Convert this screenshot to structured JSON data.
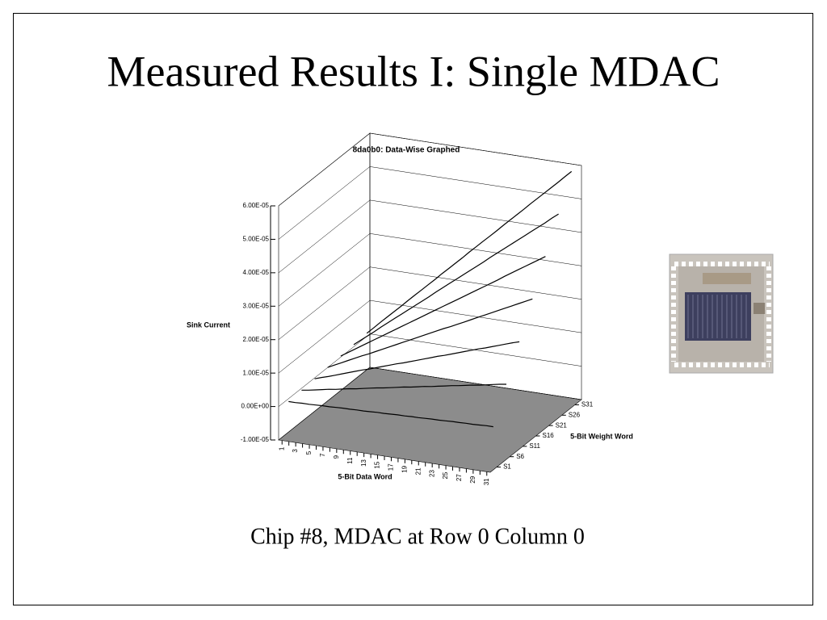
{
  "slide_title": "Measured Results I: Single MDAC",
  "caption": "Chip #8, MDAC at Row 0 Column 0",
  "chart_data": {
    "type": "line3d",
    "title": "8da0b0: Data-Wise Graphed",
    "y_label": "Sink Current",
    "x_label": "5-Bit Data Word",
    "z_label": "5-Bit Weight Word",
    "categories": [
      "1",
      null,
      "3",
      null,
      "5",
      null,
      "7",
      null,
      "9",
      null,
      "11",
      null,
      "13",
      null,
      "15",
      null,
      "17",
      null,
      "19",
      null,
      "21",
      null,
      "23",
      null,
      "25",
      null,
      "27",
      null,
      "29",
      null,
      "31"
    ],
    "ylim": [
      -1e-05,
      6e-05
    ],
    "yticks": [
      {
        "value": -1e-05,
        "label": "-1.00E-05"
      },
      {
        "value": 0,
        "label": "0.00E+00"
      },
      {
        "value": 1e-05,
        "label": "1.00E-05"
      },
      {
        "value": 2e-05,
        "label": "2.00E-05"
      },
      {
        "value": 3e-05,
        "label": "3.00E-05"
      },
      {
        "value": 4e-05,
        "label": "4.00E-05"
      },
      {
        "value": 5e-05,
        "label": "5.00E-05"
      },
      {
        "value": 6e-05,
        "label": "6.00E-05"
      }
    ],
    "grid": true,
    "floor_color": "#8c8c8c",
    "series": [
      {
        "name": "S1",
        "color": "#000000",
        "values": [
          1e-07,
          1e-07,
          2e-07,
          2e-07,
          3e-07,
          4e-07,
          4e-07,
          5e-07,
          6e-07,
          6e-07,
          7e-07,
          7e-07,
          8e-07,
          9e-07,
          9e-07,
          1e-06,
          1.1e-06,
          1.1e-06,
          1.2e-06,
          1.2e-06,
          1.3e-06,
          1.4e-06,
          1.4e-06,
          1.5e-06,
          1.6e-06,
          1.6e-06,
          1.7e-06,
          1.7e-06,
          1.8e-06,
          1.9e-06,
          1.9e-06
        ]
      },
      {
        "name": "S6",
        "color": "#000000",
        "values": [
          4e-07,
          7e-07,
          1.1e-06,
          1.5e-06,
          1.9e-06,
          2.2e-06,
          2.6e-06,
          3e-06,
          3.3e-06,
          3.7e-06,
          4.1e-06,
          4.5e-06,
          4.8e-06,
          5.2e-06,
          5.6e-06,
          6e-06,
          6.3e-06,
          6.7e-06,
          7.1e-06,
          7.4e-06,
          7.8e-06,
          8.2e-06,
          8.6e-06,
          8.9e-06,
          9.3e-06,
          9.7e-06,
          1e-05,
          1.04e-05,
          1.08e-05,
          1.12e-05,
          1.15e-05
        ]
      },
      {
        "name": "S11",
        "color": "#000000",
        "values": [
          7e-07,
          1.4e-06,
          2e-06,
          2.7e-06,
          3.4e-06,
          4.1e-06,
          4.8e-06,
          5.5e-06,
          6.1e-06,
          6.8e-06,
          7.5e-06,
          8.2e-06,
          8.9e-06,
          9.5e-06,
          1.02e-05,
          1.09e-05,
          1.16e-05,
          1.23e-05,
          1.3e-05,
          1.36e-05,
          1.43e-05,
          1.5e-05,
          1.57e-05,
          1.64e-05,
          1.71e-05,
          1.77e-05,
          1.84e-05,
          1.91e-05,
          1.98e-05,
          2.05e-05,
          2.11e-05
        ]
      },
      {
        "name": "S16",
        "color": "#000000",
        "values": [
          1e-06,
          2e-06,
          3e-06,
          4e-06,
          5e-06,
          6e-06,
          6.9e-06,
          7.9e-06,
          8.9e-06,
          9.9e-06,
          1.09e-05,
          1.19e-05,
          1.29e-05,
          1.39e-05,
          1.49e-05,
          1.59e-05,
          1.69e-05,
          1.79e-05,
          1.88e-05,
          1.98e-05,
          2.08e-05,
          2.18e-05,
          2.28e-05,
          2.38e-05,
          2.48e-05,
          2.58e-05,
          2.68e-05,
          2.78e-05,
          2.88e-05,
          2.98e-05,
          3.08e-05
        ]
      },
      {
        "name": "S21",
        "color": "#000000",
        "values": [
          1.3e-06,
          2.6e-06,
          3.9e-06,
          5.2e-06,
          6.5e-06,
          7.8e-06,
          9.1e-06,
          1.04e-05,
          1.17e-05,
          1.3e-05,
          1.43e-05,
          1.56e-05,
          1.69e-05,
          1.82e-05,
          1.95e-05,
          2.08e-05,
          2.21e-05,
          2.34e-05,
          2.47e-05,
          2.6e-05,
          2.73e-05,
          2.86e-05,
          2.99e-05,
          3.12e-05,
          3.26e-05,
          3.39e-05,
          3.52e-05,
          3.65e-05,
          3.78e-05,
          3.91e-05,
          4.04e-05
        ]
      },
      {
        "name": "S26",
        "color": "#000000",
        "values": [
          1.6e-06,
          3.2e-06,
          4.8e-06,
          6.4e-06,
          8.1e-06,
          9.7e-06,
          1.13e-05,
          1.29e-05,
          1.45e-05,
          1.61e-05,
          1.77e-05,
          1.93e-05,
          2.1e-05,
          2.26e-05,
          2.42e-05,
          2.58e-05,
          2.74e-05,
          2.9e-05,
          3.06e-05,
          3.22e-05,
          3.39e-05,
          3.55e-05,
          3.71e-05,
          3.87e-05,
          4.03e-05,
          4.19e-05,
          4.35e-05,
          4.51e-05,
          4.67e-05,
          4.84e-05,
          5e-05
        ]
      },
      {
        "name": "S31",
        "color": "#000000",
        "values": [
          1.9e-06,
          3.8e-06,
          5.8e-06,
          7.7e-06,
          9.6e-06,
          1.15e-05,
          1.35e-05,
          1.54e-05,
          1.73e-05,
          1.92e-05,
          2.11e-05,
          2.31e-05,
          2.5e-05,
          2.69e-05,
          2.88e-05,
          3.08e-05,
          3.27e-05,
          3.46e-05,
          3.65e-05,
          3.84e-05,
          4.04e-05,
          4.23e-05,
          4.42e-05,
          4.61e-05,
          4.81e-05,
          5e-05,
          5.19e-05,
          5.38e-05,
          5.57e-05,
          5.77e-05,
          5.96e-05
        ]
      }
    ]
  }
}
